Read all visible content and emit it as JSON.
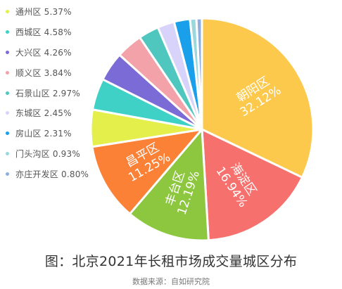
{
  "chart_data": {
    "type": "pie",
    "title": "图：北京2021年长租市场成交量城区分布",
    "source": "数据来源：自如研究院",
    "legend_position": "left",
    "slices": [
      {
        "name": "朝阳区",
        "value": 32.12,
        "label": "32.12%",
        "color": "#fdc94c",
        "show_label": true
      },
      {
        "name": "海淀区",
        "value": 16.94,
        "label": "16.94%",
        "color": "#f6716d",
        "show_label": true
      },
      {
        "name": "丰台区",
        "value": 12.19,
        "label": "12.19%",
        "color": "#8dc63f",
        "show_label": true
      },
      {
        "name": "昌平区",
        "value": 11.25,
        "label": "11.25%",
        "color": "#fb8136",
        "show_label": true
      },
      {
        "name": "通州区",
        "value": 5.37,
        "label": "5.37%",
        "color": "#e5ef4c",
        "show_label": false
      },
      {
        "name": "西城区",
        "value": 4.58,
        "label": "4.58%",
        "color": "#3fd1c6",
        "show_label": false
      },
      {
        "name": "大兴区",
        "value": 4.26,
        "label": "4.26%",
        "color": "#7b6bd7",
        "show_label": false
      },
      {
        "name": "顺义区",
        "value": 3.84,
        "label": "3.84%",
        "color": "#f3a2a9",
        "show_label": false
      },
      {
        "name": "石景山区",
        "value": 2.97,
        "label": "2.97%",
        "color": "#4fc7bf",
        "show_label": false
      },
      {
        "name": "东城区",
        "value": 2.45,
        "label": "2.45%",
        "color": "#d7d3fa",
        "show_label": false
      },
      {
        "name": "房山区",
        "value": 2.31,
        "label": "2.31%",
        "color": "#1a9fea",
        "show_label": false
      },
      {
        "name": "门头沟区",
        "value": 0.93,
        "label": "0.93%",
        "color": "#9ad8dc",
        "show_label": false
      },
      {
        "name": "亦庄开发区",
        "value": 0.8,
        "label": "0.80%",
        "color": "#8eaede",
        "show_label": false
      }
    ],
    "legend": [
      {
        "text": "通州区 5.37%",
        "color": "#e5ef4c"
      },
      {
        "text": "西城区 4.58%",
        "color": "#3fd1c6"
      },
      {
        "text": "大兴区 4.26%",
        "color": "#7b6bd7"
      },
      {
        "text": "顺义区 3.84%",
        "color": "#f3a2a9"
      },
      {
        "text": "石景山区 2.97%",
        "color": "#4fc7bf"
      },
      {
        "text": "东城区 2.45%",
        "color": "#d7d3fa"
      },
      {
        "text": "房山区 2.31%",
        "color": "#1a9fea"
      },
      {
        "text": "门头沟区 0.93%",
        "color": "#9ad8dc"
      },
      {
        "text": "亦庄开发区 0.80%",
        "color": "#8eaede"
      }
    ]
  }
}
